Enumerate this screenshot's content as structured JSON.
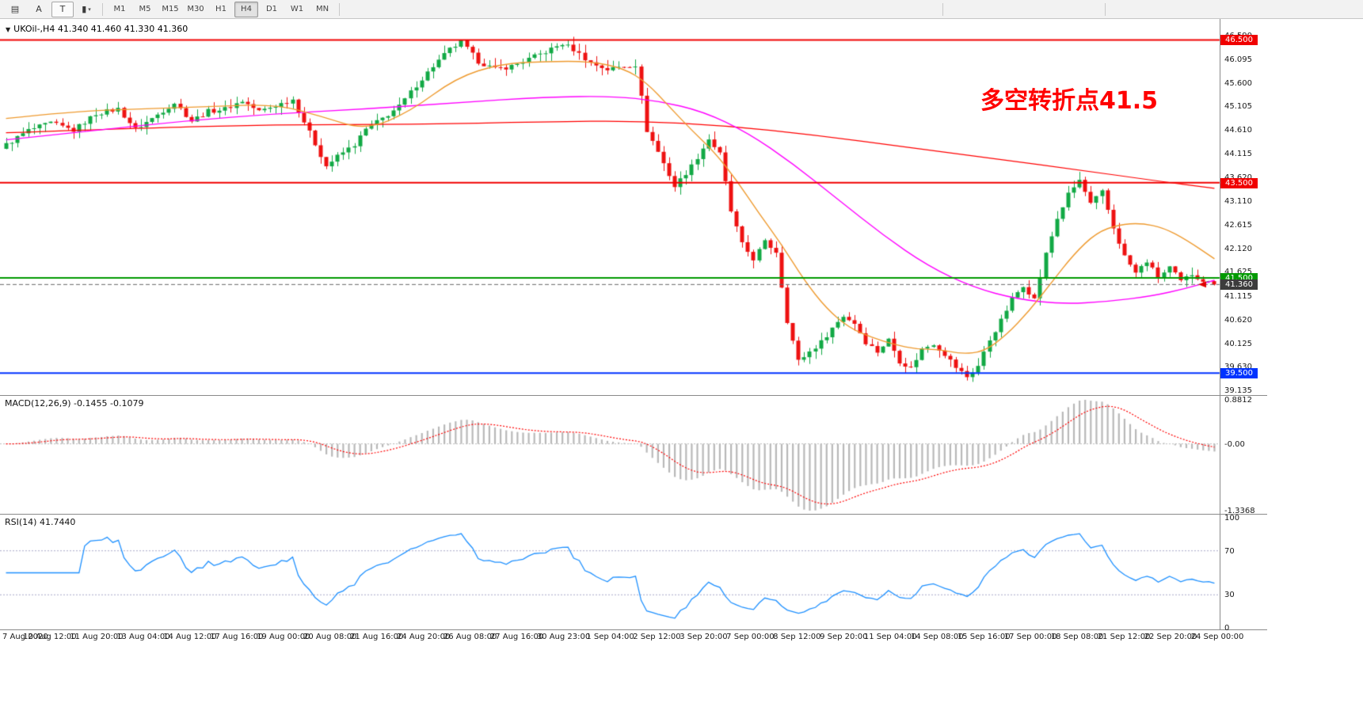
{
  "toolbar": {
    "icons": [
      {
        "name": "chart-list-icon",
        "glyph": "▤"
      },
      {
        "name": "annotation-icon",
        "glyph": "A"
      },
      {
        "name": "text-tool-icon",
        "glyph": "T"
      },
      {
        "name": "template-icon",
        "glyph": "▮",
        "caret": "▾"
      }
    ],
    "timeframes": [
      "M1",
      "M5",
      "M15",
      "M30",
      "H1",
      "H4",
      "D1",
      "W1",
      "MN"
    ],
    "active_timeframe": "H4"
  },
  "chart": {
    "marker_glyph": "▼",
    "title": "UKOil-,H4 41.340 41.460 41.330 41.360",
    "symbol": "UKOil-",
    "period": "H4",
    "ohlc": {
      "open": "41.340",
      "high": "41.460",
      "low": "41.330",
      "close": "41.360"
    },
    "annotation": {
      "text": "多空转折点41.5",
      "color": "#FF0000"
    },
    "price_axis": {
      "plot_max": 46.94,
      "plot_min": 39.07,
      "ticks": [
        "46.590",
        "46.095",
        "45.600",
        "45.105",
        "44.610",
        "44.115",
        "43.620",
        "43.110",
        "42.615",
        "42.120",
        "41.625",
        "41.115",
        "40.620",
        "40.125",
        "39.630",
        "39.135"
      ]
    },
    "levels": [
      {
        "label": "46.500",
        "value": 46.5,
        "color": "#F00000"
      },
      {
        "label": "43.500",
        "value": 43.5,
        "color": "#F00000"
      },
      {
        "label": "41.500",
        "value": 41.5,
        "color": "#009900"
      },
      {
        "label": "39.500",
        "value": 39.5,
        "color": "#0033FF"
      }
    ],
    "current_price": {
      "label": "41.360",
      "value": 41.36,
      "tag_color": "#3C3C3C"
    },
    "candle_colors": {
      "up": "#12A945",
      "down": "#EE1111"
    }
  },
  "chart_data": {
    "type": "candlestick",
    "symbol": "UKOil-",
    "timeframe": "H4",
    "bars": 216,
    "close_waypoints": [
      [
        0,
        44.3
      ],
      [
        4,
        44.6
      ],
      [
        8,
        44.75
      ],
      [
        12,
        44.6
      ],
      [
        16,
        44.95
      ],
      [
        20,
        45.05
      ],
      [
        23,
        44.62
      ],
      [
        26,
        44.85
      ],
      [
        30,
        45.18
      ],
      [
        33,
        44.8
      ],
      [
        36,
        45.0
      ],
      [
        39,
        45.05
      ],
      [
        42,
        45.22
      ],
      [
        45,
        45.0
      ],
      [
        48,
        45.12
      ],
      [
        51,
        45.25
      ],
      [
        54,
        44.55
      ],
      [
        57,
        43.85
      ],
      [
        59,
        44.05
      ],
      [
        62,
        44.3
      ],
      [
        64,
        44.62
      ],
      [
        67,
        44.85
      ],
      [
        70,
        45.1
      ],
      [
        73,
        45.55
      ],
      [
        76,
        45.95
      ],
      [
        79,
        46.3
      ],
      [
        81,
        46.45
      ],
      [
        84,
        46.05
      ],
      [
        87,
        45.88
      ],
      [
        90,
        45.95
      ],
      [
        93,
        46.1
      ],
      [
        96,
        46.25
      ],
      [
        99,
        46.42
      ],
      [
        101,
        46.3
      ],
      [
        104,
        46.02
      ],
      [
        107,
        45.88
      ],
      [
        110,
        45.95
      ],
      [
        112,
        45.98
      ],
      [
        114,
        44.6
      ],
      [
        116,
        44.15
      ],
      [
        119,
        43.42
      ],
      [
        122,
        43.85
      ],
      [
        125,
        44.42
      ],
      [
        127,
        44.1
      ],
      [
        129,
        42.9
      ],
      [
        131,
        42.2
      ],
      [
        133,
        41.9
      ],
      [
        135,
        42.25
      ],
      [
        137,
        42.05
      ],
      [
        139,
        40.6
      ],
      [
        141,
        39.75
      ],
      [
        143,
        39.95
      ],
      [
        145,
        40.15
      ],
      [
        147,
        40.45
      ],
      [
        149,
        40.7
      ],
      [
        151,
        40.55
      ],
      [
        153,
        40.15
      ],
      [
        155,
        39.95
      ],
      [
        157,
        40.2
      ],
      [
        159,
        39.75
      ],
      [
        161,
        39.6
      ],
      [
        163,
        40.0
      ],
      [
        165,
        40.12
      ],
      [
        167,
        39.9
      ],
      [
        169,
        39.62
      ],
      [
        171,
        39.42
      ],
      [
        173,
        39.65
      ],
      [
        175,
        40.2
      ],
      [
        177,
        40.6
      ],
      [
        179,
        41.05
      ],
      [
        181,
        41.35
      ],
      [
        183,
        41.05
      ],
      [
        185,
        42.0
      ],
      [
        187,
        42.75
      ],
      [
        189,
        43.25
      ],
      [
        191,
        43.55
      ],
      [
        193,
        43.05
      ],
      [
        195,
        43.3
      ],
      [
        197,
        42.55
      ],
      [
        199,
        41.95
      ],
      [
        201,
        41.6
      ],
      [
        203,
        41.85
      ],
      [
        205,
        41.5
      ],
      [
        207,
        41.72
      ],
      [
        209,
        41.42
      ],
      [
        211,
        41.58
      ],
      [
        213,
        41.45
      ],
      [
        215,
        41.36
      ]
    ],
    "moving_averages": [
      {
        "name": "ma-fast-orange",
        "color": "#EE9A2F",
        "width": 1.4,
        "points": [
          [
            0,
            44.85
          ],
          [
            12,
            45.0
          ],
          [
            24,
            45.05
          ],
          [
            36,
            45.1
          ],
          [
            48,
            45.15
          ],
          [
            56,
            44.9
          ],
          [
            64,
            44.6
          ],
          [
            72,
            45.0
          ],
          [
            80,
            45.7
          ],
          [
            88,
            46.0
          ],
          [
            96,
            46.05
          ],
          [
            104,
            46.05
          ],
          [
            110,
            45.9
          ],
          [
            114,
            45.6
          ],
          [
            118,
            45.1
          ],
          [
            122,
            44.6
          ],
          [
            126,
            44.15
          ],
          [
            130,
            43.55
          ],
          [
            134,
            42.85
          ],
          [
            138,
            42.2
          ],
          [
            142,
            41.45
          ],
          [
            146,
            40.85
          ],
          [
            150,
            40.45
          ],
          [
            154,
            40.25
          ],
          [
            158,
            40.1
          ],
          [
            162,
            40.0
          ],
          [
            166,
            40.0
          ],
          [
            170,
            39.9
          ],
          [
            174,
            39.95
          ],
          [
            178,
            40.3
          ],
          [
            182,
            40.8
          ],
          [
            186,
            41.4
          ],
          [
            190,
            42.0
          ],
          [
            194,
            42.45
          ],
          [
            198,
            42.62
          ],
          [
            202,
            42.65
          ],
          [
            206,
            42.55
          ],
          [
            210,
            42.3
          ],
          [
            215,
            41.9
          ]
        ]
      },
      {
        "name": "ma-mid-magenta",
        "color": "#FF00FF",
        "width": 1.4,
        "points": [
          [
            0,
            44.4
          ],
          [
            16,
            44.6
          ],
          [
            32,
            44.8
          ],
          [
            48,
            44.95
          ],
          [
            64,
            45.05
          ],
          [
            80,
            45.18
          ],
          [
            96,
            45.3
          ],
          [
            108,
            45.32
          ],
          [
            116,
            45.22
          ],
          [
            124,
            45.0
          ],
          [
            132,
            44.55
          ],
          [
            140,
            43.9
          ],
          [
            148,
            43.15
          ],
          [
            156,
            42.4
          ],
          [
            164,
            41.75
          ],
          [
            172,
            41.3
          ],
          [
            180,
            41.05
          ],
          [
            188,
            40.95
          ],
          [
            196,
            41.0
          ],
          [
            204,
            41.12
          ],
          [
            210,
            41.28
          ],
          [
            215,
            41.45
          ]
        ]
      },
      {
        "name": "ma-slow-red",
        "color": "#FF0000",
        "width": 1.2,
        "points": [
          [
            0,
            44.55
          ],
          [
            24,
            44.65
          ],
          [
            48,
            44.72
          ],
          [
            72,
            44.72
          ],
          [
            96,
            44.78
          ],
          [
            112,
            44.8
          ],
          [
            128,
            44.7
          ],
          [
            144,
            44.5
          ],
          [
            160,
            44.25
          ],
          [
            176,
            44.0
          ],
          [
            192,
            43.75
          ],
          [
            204,
            43.55
          ],
          [
            215,
            43.38
          ]
        ]
      }
    ]
  },
  "macd": {
    "header": "MACD(12,26,9) -0.1455 -0.1079",
    "axis_labels": [
      "0.8812",
      "-0.00",
      "-1.3368"
    ],
    "axis_max": 0.8812,
    "axis_min": -1.3368,
    "histogram_color": "#B8B8B8",
    "signal_color": "#FF0000"
  },
  "rsi": {
    "header": "RSI(14) 41.7440",
    "value": "41.7440",
    "axis_labels": [
      "100",
      "70",
      "30",
      "0"
    ],
    "level_lines": [
      70,
      30
    ],
    "line_color": "#1E90FF"
  },
  "time_axis": {
    "labels": [
      "7 Aug 2020",
      "10 Aug 12:00",
      "11 Aug 20:00",
      "13 Aug 04:00",
      "14 Aug 12:00",
      "17 Aug 16:00",
      "19 Aug 00:00",
      "20 Aug 08:00",
      "21 Aug 16:00",
      "24 Aug 20:00",
      "26 Aug 08:00",
      "27 Aug 16:00",
      "30 Aug 23:00",
      "1 Sep 04:00",
      "2 Sep 12:00",
      "3 Sep 20:00",
      "7 Sep 00:00",
      "8 Sep 12:00",
      "9 Sep 20:00",
      "11 Sep 04:00",
      "14 Sep 08:00",
      "15 Sep 16:00",
      "17 Sep 00:00",
      "18 Sep 08:00",
      "21 Sep 12:00",
      "22 Sep 20:00",
      "24 Sep 00:00"
    ]
  }
}
